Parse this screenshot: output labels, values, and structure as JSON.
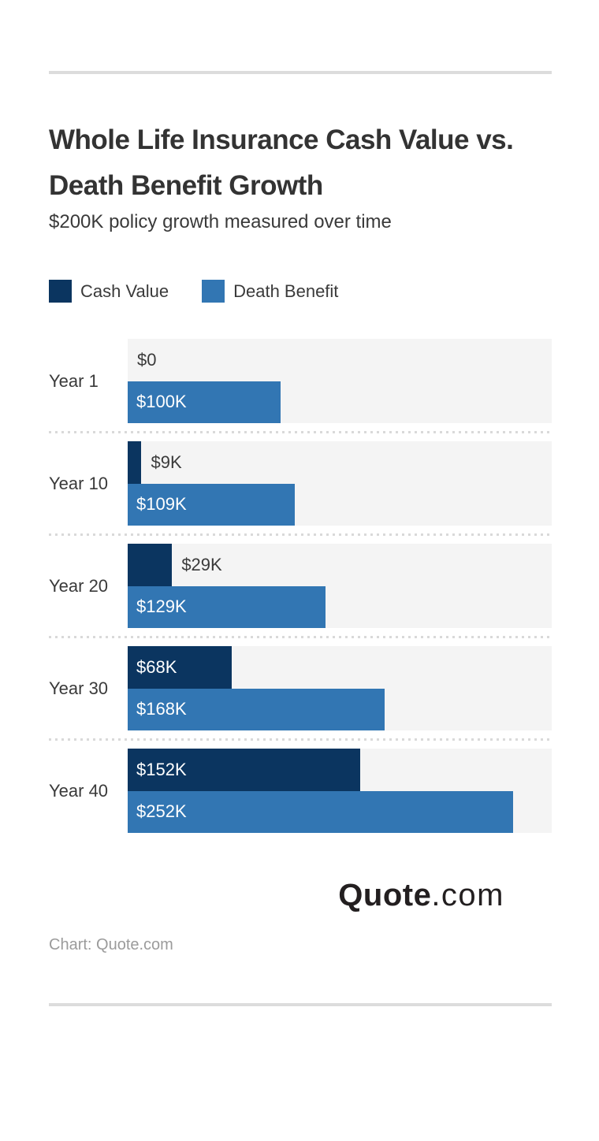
{
  "header": {
    "title_lines": [
      "Whole Life Insurance Cash Value vs.",
      "Death Benefit Growth"
    ],
    "subtitle": "$200K policy growth measured over time"
  },
  "legend": {
    "items": [
      {
        "label": "Cash Value",
        "color": "#0B3560"
      },
      {
        "label": "Death Benefit",
        "color": "#3276B3"
      }
    ]
  },
  "chart_data": {
    "type": "bar",
    "orientation": "horizontal",
    "title": "Whole Life Insurance Cash Value vs. Death Benefit Growth",
    "subtitle": "$200K policy growth measured over time",
    "categories": [
      "Year 1",
      "Year 10",
      "Year 20",
      "Year 30",
      "Year 40"
    ],
    "series": [
      {
        "name": "Cash Value",
        "color": "#0B3560",
        "values": [
          0,
          9,
          29,
          68,
          152
        ],
        "labels": [
          "$0",
          "$9K",
          "$29K",
          "$68K",
          "$152K"
        ]
      },
      {
        "name": "Death Benefit",
        "color": "#3276B3",
        "values": [
          100,
          109,
          129,
          168,
          252
        ],
        "labels": [
          "$100K",
          "$109K",
          "$129K",
          "$168K",
          "$252K"
        ]
      }
    ],
    "unit": "USD thousands",
    "xlim": [
      0,
      277
    ],
    "grid": false,
    "legend_position": "top-left",
    "track_color": "#f4f4f4"
  },
  "footer": {
    "logo_primary": "Quote",
    "logo_suffix": ".com",
    "caption": "Chart: Quote.com"
  },
  "colors": {
    "cash_value": "#0B3560",
    "death_benefit": "#3276B3",
    "track": "#f4f4f4",
    "rule": "#dcdcdc",
    "dotted_separator": "#d9d9d9",
    "text": "#3a3a3a",
    "caption": "#9b9b9b",
    "logo": "#231f20"
  }
}
